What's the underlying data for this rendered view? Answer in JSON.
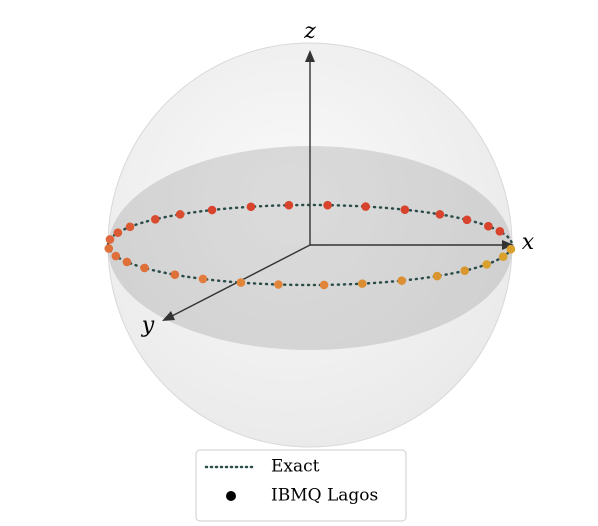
{
  "chart_data": {
    "type": "bloch",
    "axis_labels": {
      "x": "x",
      "y": "y",
      "z": "z"
    },
    "exact": {
      "name": "Exact",
      "color": "#2b4d4a"
    },
    "points": {
      "name": "IBMQ Lagos",
      "phi": [
        175,
        164,
        155,
        145,
        132,
        122,
        110,
        99,
        86,
        75,
        63,
        51,
        40,
        29,
        17,
        6,
        -20,
        -28,
        -39,
        -50,
        -62,
        -74,
        -85,
        -96,
        -107,
        -119,
        -130,
        -140,
        -153,
        -162,
        -172
      ],
      "colors": [
        "#e0703a",
        "#e0703a",
        "#e0703a",
        "#e0703a",
        "#e0703a",
        "#e27b3c",
        "#e0853a",
        "#e0853a",
        "#e0853a",
        "#db8e33",
        "#db8e33",
        "#d9962e",
        "#d9962e",
        "#d9a12c",
        "#d9a12c",
        "#d9a12c",
        "#d8432e",
        "#d8432e",
        "#d8432e",
        "#d8432e",
        "#d8432e",
        "#d8432e",
        "#d8432e",
        "#d8432e",
        "#d8432e",
        "#d8432e",
        "#d84d30",
        "#d84d30",
        "#dc5a33",
        "#dc5a33",
        "#e0653a"
      ]
    }
  }
}
